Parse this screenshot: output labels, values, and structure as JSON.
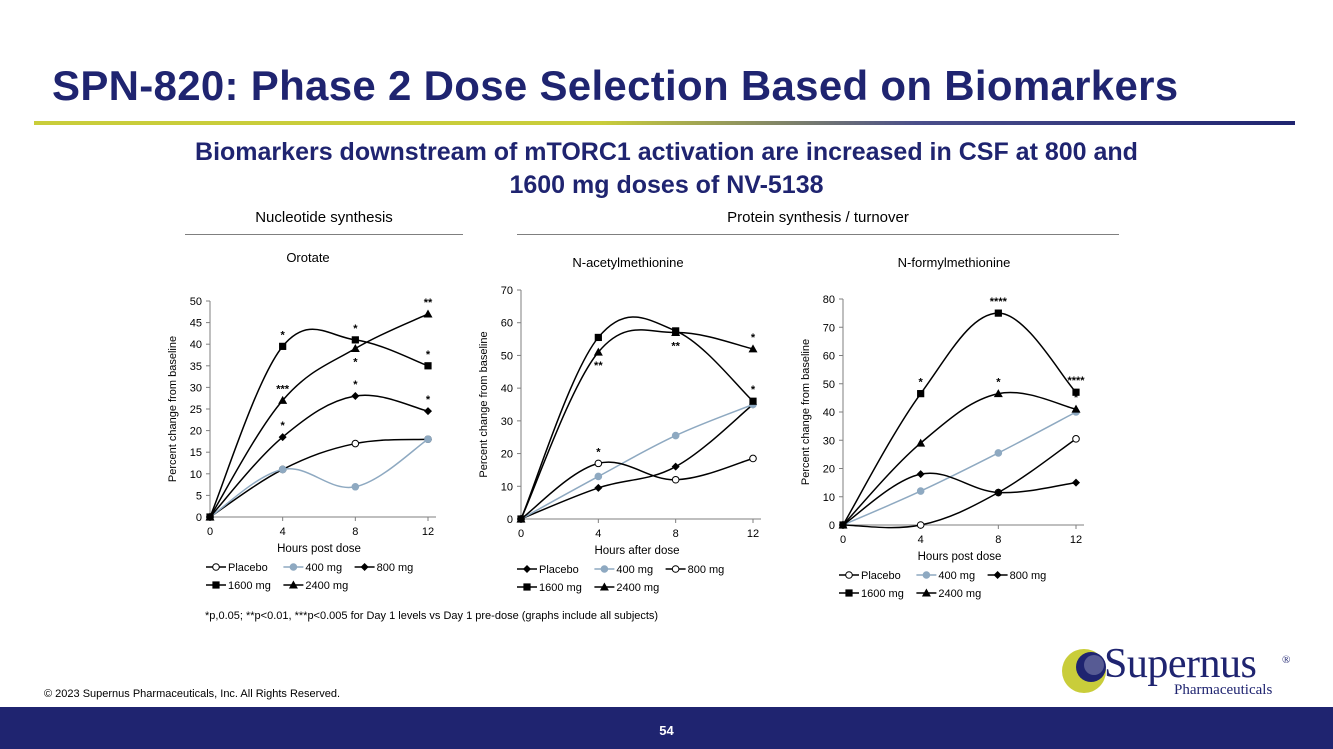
{
  "title": "SPN-820: Phase 2 Dose Selection Based on Biomarkers",
  "subtitle": {
    "line1": "Biomarkers downstream of mTORC1 activation are increased in CSF at 800 and",
    "line2": "1600 mg doses of NV-5138"
  },
  "sections": {
    "nucleotide": "Nucleotide synthesis",
    "protein": "Protein synthesis / turnover"
  },
  "footnote": "*p,0.05; **p<0.01, ***p<0.005 for Day 1 levels vs Day 1 pre-dose (graphs include all subjects)",
  "copyright": "© 2023 Supernus Pharmaceuticals, Inc. All Rights Reserved.",
  "page_number": "54",
  "logo": {
    "name": "Supernus",
    "registered": "®",
    "sub": "Pharmaceuticals"
  },
  "colors": {
    "navy": "#1f2470",
    "accent_yellow": "#c9cd3a",
    "series_gray": "#8ea9c1"
  },
  "chart_data": [
    {
      "type": "line",
      "title": "Orotate",
      "xlabel": "Hours post dose",
      "ylabel": "Percent change from baseline",
      "x": [
        0,
        4,
        8,
        12
      ],
      "xlim": [
        0,
        12
      ],
      "ylim": [
        0,
        50
      ],
      "yticks": [
        0,
        5,
        10,
        15,
        20,
        25,
        30,
        35,
        40,
        45,
        50
      ],
      "xticks": [
        0,
        4,
        8,
        12
      ],
      "series": [
        {
          "name": "Placebo",
          "marker": "open-circle",
          "values": [
            0,
            11,
            17,
            18
          ]
        },
        {
          "name": "400 mg",
          "marker": "gray-circle",
          "values": [
            0,
            11,
            7,
            18
          ]
        },
        {
          "name": "800 mg",
          "marker": "diamond",
          "values": [
            0,
            18.5,
            28,
            24.5
          ]
        },
        {
          "name": "1600 mg",
          "marker": "square",
          "values": [
            0,
            39.5,
            41,
            35
          ]
        },
        {
          "name": "2400 mg",
          "marker": "triangle",
          "values": [
            0,
            27,
            39,
            47
          ]
        }
      ],
      "annotations": [
        {
          "x": 4,
          "y": 39.5,
          "text": "*",
          "pos": "above"
        },
        {
          "x": 4,
          "y": 27,
          "text": "***",
          "pos": "above"
        },
        {
          "x": 4,
          "y": 18.5,
          "text": "*",
          "pos": "above"
        },
        {
          "x": 8,
          "y": 41,
          "text": "*",
          "pos": "above"
        },
        {
          "x": 8,
          "y": 39,
          "text": "*",
          "pos": "below"
        },
        {
          "x": 8,
          "y": 28,
          "text": "*",
          "pos": "above"
        },
        {
          "x": 12,
          "y": 47,
          "text": "**",
          "pos": "above"
        },
        {
          "x": 12,
          "y": 35,
          "text": "*",
          "pos": "above"
        },
        {
          "x": 12,
          "y": 24.5,
          "text": "*",
          "pos": "above"
        }
      ],
      "legend": {
        "row1": [
          "Placebo",
          "400 mg",
          "800 mg"
        ],
        "row2": [
          "1600 mg",
          "2400 mg"
        ]
      }
    },
    {
      "type": "line",
      "title": "N-acetylmethionine",
      "xlabel": "Hours after dose",
      "ylabel": "Percent change from baseline",
      "x": [
        0,
        4,
        8,
        12
      ],
      "xlim": [
        0,
        12
      ],
      "ylim": [
        0,
        70
      ],
      "yticks": [
        0,
        10,
        20,
        30,
        40,
        50,
        60,
        70
      ],
      "xticks": [
        0,
        4,
        8,
        12
      ],
      "series": [
        {
          "name": "Placebo",
          "marker": "diamond",
          "values": [
            0,
            9.5,
            16,
            35
          ]
        },
        {
          "name": "400 mg",
          "marker": "gray-circle",
          "values": [
            0,
            13,
            25.5,
            35
          ]
        },
        {
          "name": "800 mg",
          "marker": "open-circle",
          "values": [
            0,
            17,
            12,
            18.5
          ]
        },
        {
          "name": "1600 mg",
          "marker": "square",
          "values": [
            0,
            55.5,
            57.5,
            36
          ]
        },
        {
          "name": "2400 mg",
          "marker": "triangle",
          "values": [
            0,
            51,
            57,
            52
          ]
        }
      ],
      "annotations": [
        {
          "x": 4,
          "y": 51,
          "text": "**",
          "pos": "below"
        },
        {
          "x": 4,
          "y": 17,
          "text": "*",
          "pos": "above"
        },
        {
          "x": 8,
          "y": 57,
          "text": "**",
          "pos": "below"
        },
        {
          "x": 12,
          "y": 52,
          "text": "*",
          "pos": "above"
        },
        {
          "x": 12,
          "y": 36,
          "text": "*",
          "pos": "above"
        }
      ],
      "legend": {
        "row1": [
          "Placebo",
          "400 mg",
          "800 mg"
        ],
        "row2": [
          "1600 mg",
          "2400 mg"
        ]
      }
    },
    {
      "type": "line",
      "title": "N-formylmethionine",
      "xlabel": "Hours post dose",
      "ylabel": "Percent change from baseline",
      "x": [
        0,
        4,
        8,
        12
      ],
      "xlim": [
        0,
        12
      ],
      "ylim": [
        0,
        80
      ],
      "yticks": [
        0,
        10,
        20,
        30,
        40,
        50,
        60,
        70,
        80
      ],
      "xticks": [
        0,
        4,
        8,
        12
      ],
      "series": [
        {
          "name": "Placebo",
          "marker": "open-circle",
          "values": [
            0,
            0,
            11.5,
            30.5
          ]
        },
        {
          "name": "400 mg",
          "marker": "gray-circle",
          "values": [
            0,
            12,
            25.5,
            40
          ]
        },
        {
          "name": "800 mg",
          "marker": "diamond",
          "values": [
            0,
            18,
            11.5,
            15
          ]
        },
        {
          "name": "1600 mg",
          "marker": "square",
          "values": [
            0,
            46.5,
            75,
            47
          ]
        },
        {
          "name": "2400 mg",
          "marker": "triangle",
          "values": [
            0,
            29,
            46.5,
            41
          ]
        }
      ],
      "annotations": [
        {
          "x": 4,
          "y": 46.5,
          "text": "*",
          "pos": "above"
        },
        {
          "x": 8,
          "y": 75,
          "text": "****",
          "pos": "above"
        },
        {
          "x": 8,
          "y": 46.5,
          "text": "*",
          "pos": "above"
        },
        {
          "x": 12,
          "y": 47,
          "text": "****",
          "pos": "above"
        },
        {
          "x": 12,
          "y": 41,
          "text": "*",
          "pos": "above"
        }
      ],
      "legend": {
        "row1": [
          "Placebo",
          "400 mg",
          "800 mg"
        ],
        "row2": [
          "1600 mg",
          "2400 mg"
        ]
      }
    }
  ]
}
